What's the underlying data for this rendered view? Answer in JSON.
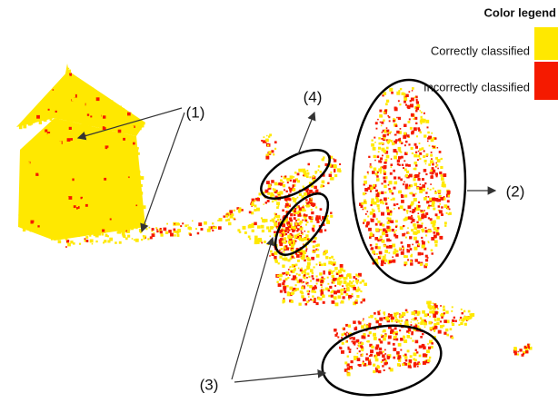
{
  "legend": {
    "title": "Color legend",
    "items": [
      {
        "label": "Correctly classified",
        "color": "#ffe800"
      },
      {
        "label": "Incorrectly classified",
        "color": "#f51a00"
      }
    ]
  },
  "callouts": [
    "(1)",
    "(2)",
    "(3)",
    "(4)"
  ]
}
